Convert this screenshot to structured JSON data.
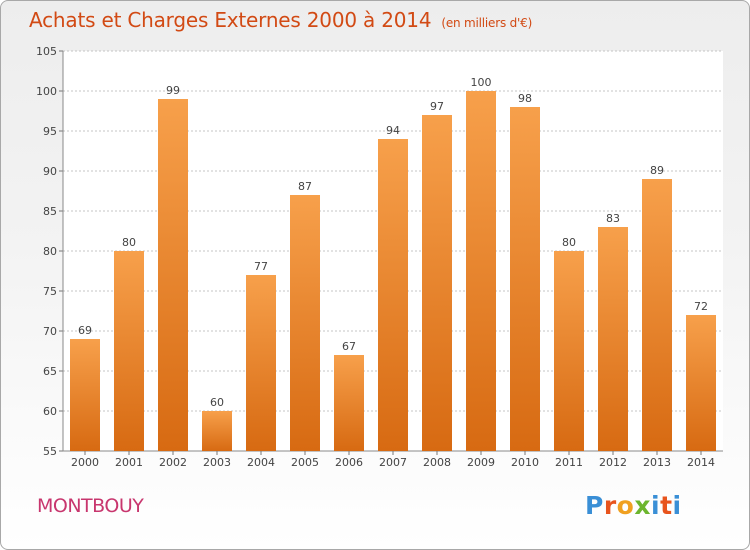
{
  "header": {
    "title": "Achats et Charges Externes 2000 à 2014",
    "subtitle": "(en milliers d'€)"
  },
  "footer": {
    "commune": "MONTBOUY",
    "logo_text": "Proxiti"
  },
  "colors": {
    "title": "#d24a14",
    "commune": "#c8366e",
    "bar_light": "#f7a04b",
    "bar_dark": "#d76a12",
    "grid": "#c4c4c4",
    "logo": [
      "#3a8fd6",
      "#e8541d",
      "#f0a020",
      "#6cb52d",
      "#3a8fd6",
      "#e8541d",
      "#3a8fd6"
    ]
  },
  "chart_data": {
    "type": "bar",
    "categories": [
      "2000",
      "2001",
      "2002",
      "2003",
      "2004",
      "2005",
      "2006",
      "2007",
      "2008",
      "2009",
      "2010",
      "2011",
      "2012",
      "2013",
      "2014"
    ],
    "values": [
      69,
      80,
      99,
      60,
      77,
      87,
      67,
      94,
      97,
      100,
      98,
      80,
      83,
      89,
      72
    ],
    "ylim": [
      55,
      105
    ],
    "yticks": [
      55,
      60,
      65,
      70,
      75,
      80,
      85,
      90,
      95,
      100,
      105
    ],
    "grid": true,
    "data_labels": true
  }
}
